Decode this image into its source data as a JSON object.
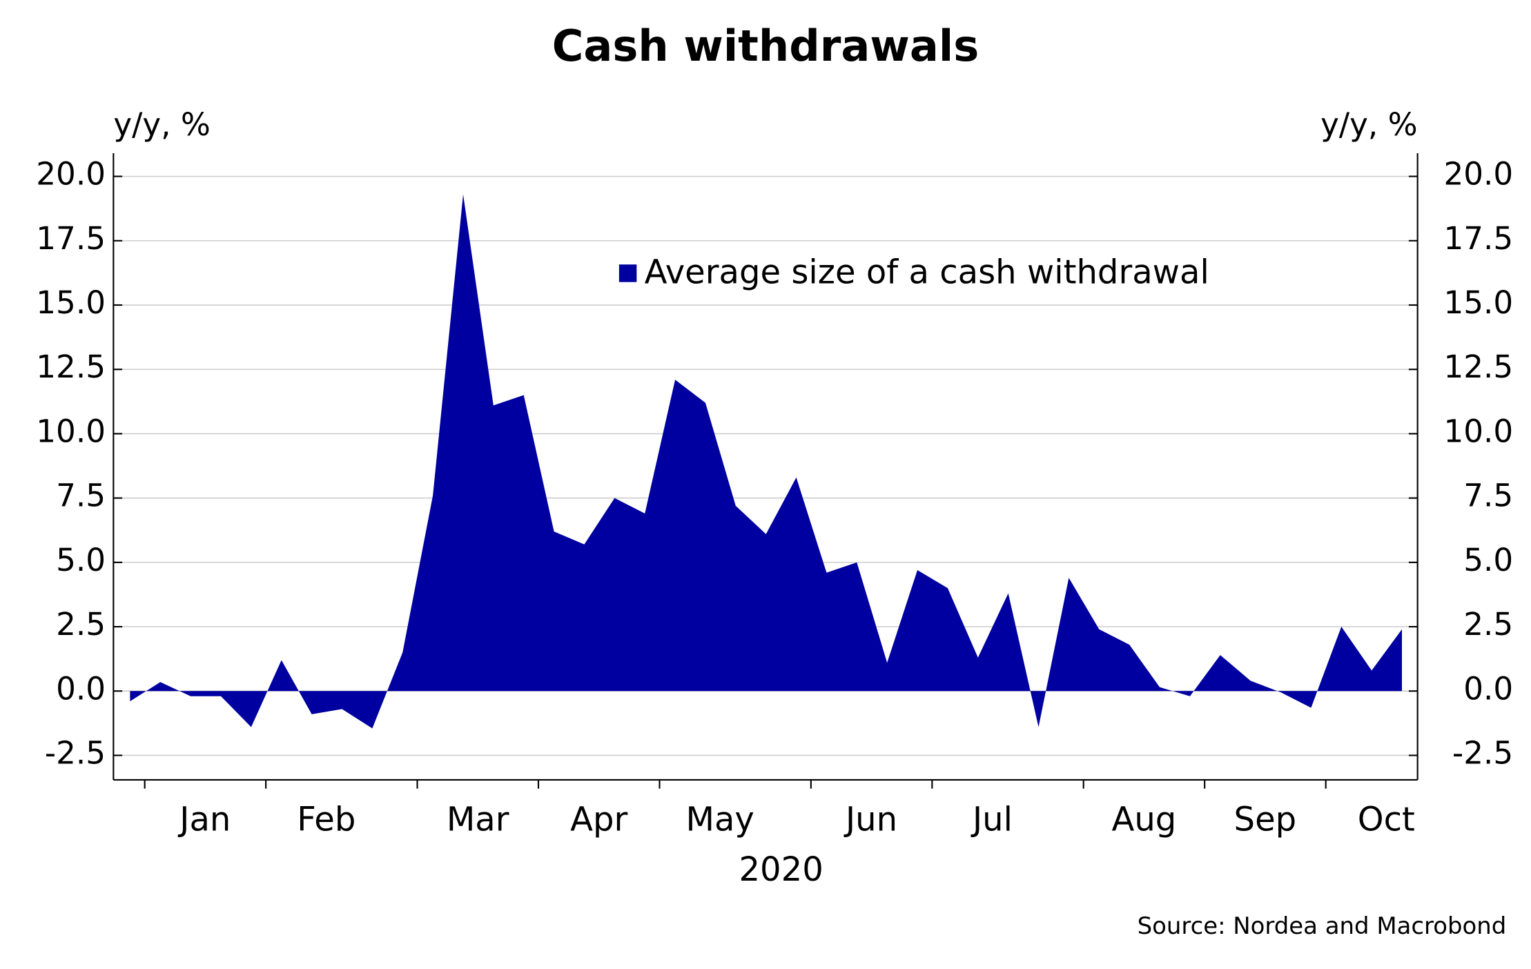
{
  "chart_data": {
    "type": "area",
    "title": "Cash withdrawals",
    "y_label": "y/y, %",
    "y2_label": "y/y, %",
    "x_label": "2020",
    "source": "Source: Nordea and Macrobond",
    "categories": [
      null,
      null,
      "Jan",
      null,
      null,
      null,
      "Feb",
      null,
      null,
      null,
      null,
      "Mar",
      null,
      null,
      null,
      "Apr",
      null,
      null,
      null,
      "May",
      null,
      null,
      null,
      null,
      "Jun",
      null,
      null,
      null,
      "Jul",
      null,
      null,
      null,
      null,
      "Aug",
      null,
      null,
      null,
      "Sep",
      null,
      null,
      null,
      "Oct",
      null
    ],
    "series": [
      {
        "name": "Average size of a cash withdrawal",
        "color": "#0000a0",
        "values": [
          -0.4,
          0.35,
          -0.2,
          -0.2,
          -1.4,
          1.2,
          -0.9,
          -0.7,
          -1.45,
          1.5,
          7.6,
          19.3,
          11.1,
          11.5,
          6.2,
          5.7,
          7.5,
          6.9,
          12.1,
          11.2,
          7.2,
          6.1,
          8.3,
          4.6,
          5.0,
          1.1,
          4.7,
          4.0,
          1.3,
          3.8,
          -1.4,
          4.4,
          2.4,
          1.8,
          0.15,
          -0.2,
          1.4,
          0.4,
          -0.05,
          -0.65,
          2.5,
          0.8,
          2.4
        ]
      }
    ],
    "ylim": [
      -3.45,
      20.9
    ],
    "yticks": [
      {
        "value": -2.5,
        "label": "-2.5"
      },
      {
        "value": 0,
        "label": "0.0"
      },
      {
        "value": 2.5,
        "label": "2.5"
      },
      {
        "value": 5,
        "label": "5.0"
      },
      {
        "value": 7.5,
        "label": "7.5"
      },
      {
        "value": 10,
        "label": "10.0"
      },
      {
        "value": 12.5,
        "label": "12.5"
      },
      {
        "value": 15,
        "label": "15.0"
      },
      {
        "value": 17.5,
        "label": "17.5"
      },
      {
        "value": 20,
        "label": "20.0"
      }
    ],
    "y2lim": [
      -3.45,
      20.9
    ],
    "y2ticks": [
      {
        "value": -2.5,
        "label": "-2.5"
      },
      {
        "value": 0,
        "label": "0.0"
      },
      {
        "value": 2.5,
        "label": "2.5"
      },
      {
        "value": 5,
        "label": "5.0"
      },
      {
        "value": 7.5,
        "label": "7.5"
      },
      {
        "value": 10,
        "label": "10.0"
      },
      {
        "value": 12.5,
        "label": "12.5"
      },
      {
        "value": 15,
        "label": "15.0"
      },
      {
        "value": 17.5,
        "label": "17.5"
      },
      {
        "value": 20,
        "label": "20.0"
      }
    ],
    "grid": true,
    "legend": "top-right"
  }
}
